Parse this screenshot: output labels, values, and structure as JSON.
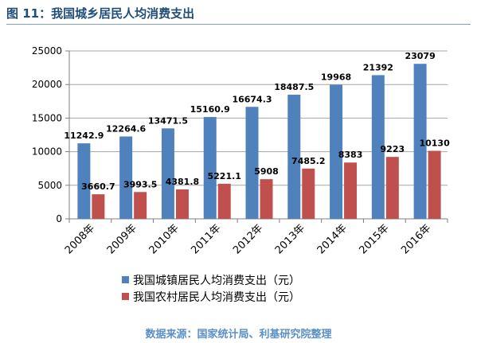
{
  "header": {
    "title": "图 11：我国城乡居民人均消费支出"
  },
  "footer": {
    "source": "数据来源：国家统计局、利基研究院整理"
  },
  "colors": {
    "urban": "#4f81bd",
    "rural": "#c0504d",
    "title": "#1f4e79",
    "source": "#5a8fc7"
  },
  "chart_data": {
    "type": "bar",
    "title": "",
    "xlabel": "",
    "ylabel": "",
    "categories": [
      "2008年",
      "2009年",
      "2010年",
      "2011年",
      "2012年",
      "2013年",
      "2014年",
      "2015年",
      "2016年"
    ],
    "ylim": [
      0,
      25000
    ],
    "yticks": [
      0,
      5000,
      10000,
      15000,
      20000,
      25000
    ],
    "yticks_labels": [
      "0",
      "5000",
      "10000",
      "15000",
      "20000",
      "25000"
    ],
    "grid": true,
    "legend_position": "bottom",
    "series": [
      {
        "name": "我国城镇居民人均消费支出（元）",
        "color": "#4f81bd",
        "values": [
          11242.9,
          12264.6,
          13471.5,
          15160.9,
          16674.3,
          18487.5,
          19968,
          21392,
          23079
        ],
        "labels": [
          "11242.9",
          "12264.6",
          "13471.5",
          "15160.9",
          "16674.3",
          "18487.5",
          "19968",
          "21392",
          "23079"
        ]
      },
      {
        "name": "我国农村居民人均消费支出（元）",
        "color": "#c0504d",
        "values": [
          3660.7,
          3993.5,
          4381.8,
          5221.1,
          5908,
          7485.2,
          8383,
          9223,
          10130
        ],
        "labels": [
          "3660.7",
          "3993.5",
          "4381.8",
          "5221.1",
          "5908",
          "7485.2",
          "8383",
          "9223",
          "10130"
        ]
      }
    ]
  }
}
